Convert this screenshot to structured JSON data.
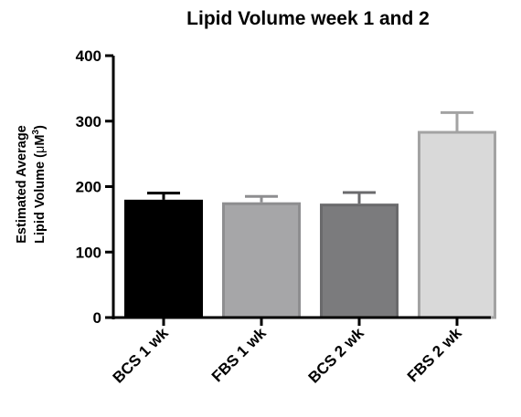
{
  "chart_data": {
    "type": "bar",
    "title": "Lipid Volume week 1 and 2",
    "ylabel_line1": "Estimated Average",
    "ylabel_line2_prefix": "Lipid Volume (",
    "ylabel_mu": "μ",
    "ylabel_unit": "M",
    "ylabel_sup": "3",
    "ylabel_suffix": ")",
    "xlabel": "",
    "categories": [
      "BCS 1 wk",
      "FBS 1 wk",
      "BCS 2 wk",
      "FBS 2 wk"
    ],
    "values": [
      180,
      176,
      174,
      285
    ],
    "errors": [
      10,
      9,
      17,
      28
    ],
    "ylim": [
      0,
      400
    ],
    "yticks": [
      0,
      100,
      200,
      300,
      400
    ],
    "ytick_labels": [
      "0",
      "100",
      "200",
      "300",
      "400"
    ],
    "bar_fill_colors": [
      "#000000",
      "#a6a6a8",
      "#7b7b7d",
      "#d9d9d9"
    ],
    "bar_edge_colors": [
      "#000000",
      "#8e8e90",
      "#6a6a6c",
      "#a3a3a3"
    ],
    "grid": false,
    "legend": "none"
  }
}
